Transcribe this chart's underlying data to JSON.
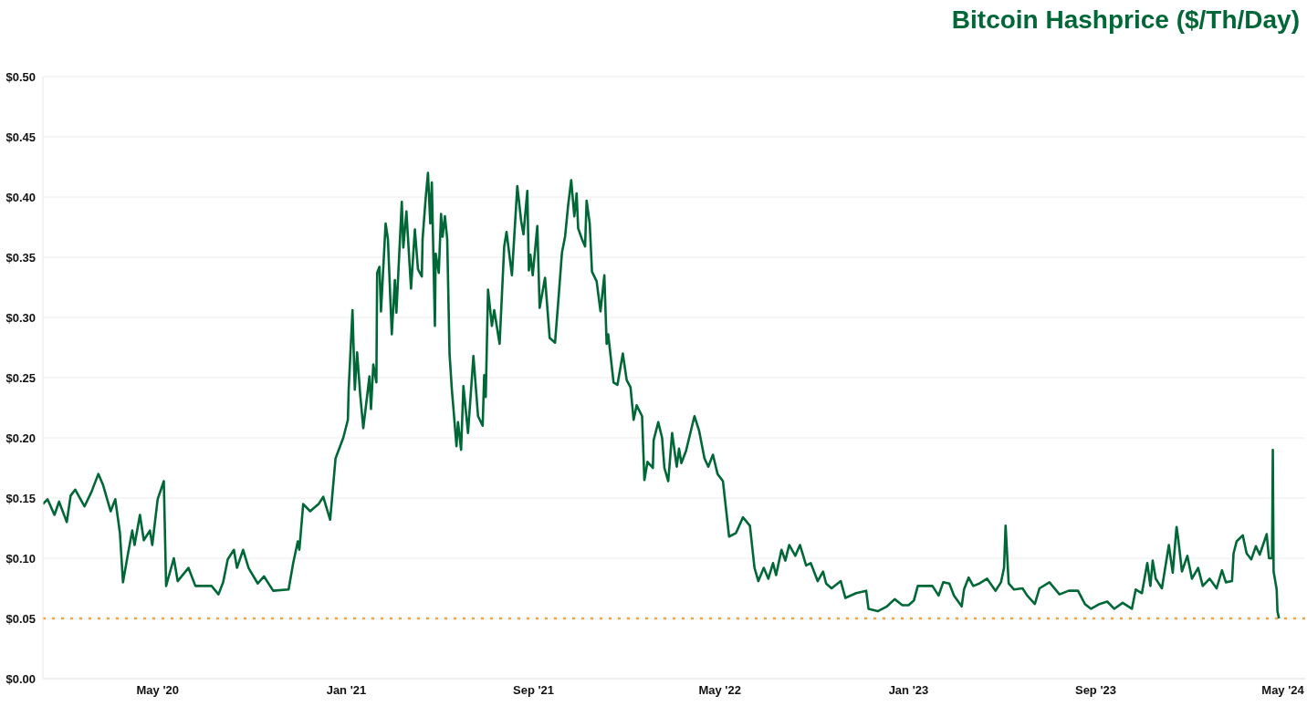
{
  "chart_data": {
    "type": "line",
    "title": "Bitcoin Hashprice ($/Th/Day)",
    "color": "#006837",
    "grid": "y",
    "xlim": [
      "2019-12-04",
      "2024-05-30"
    ],
    "xticks": [
      {
        "value": "2020-05-01",
        "label": "May '20"
      },
      {
        "value": "2021-01-01",
        "label": "Jan '21"
      },
      {
        "value": "2021-09-01",
        "label": "Sep '21"
      },
      {
        "value": "2022-05-01",
        "label": "May '22"
      },
      {
        "value": "2023-01-01",
        "label": "Jan '23"
      },
      {
        "value": "2023-09-01",
        "label": "Sep '23"
      },
      {
        "value": "2024-05-01",
        "label": "May '24"
      }
    ],
    "ylim": [
      0,
      0.5
    ],
    "yticks": [
      {
        "value": 0,
        "label": "$0.00"
      },
      {
        "value": 0.05,
        "label": "$0.05"
      },
      {
        "value": 0.1,
        "label": "$0.10"
      },
      {
        "value": 0.15,
        "label": "$0.15"
      },
      {
        "value": 0.2,
        "label": "$0.20"
      },
      {
        "value": 0.25,
        "label": "$0.25"
      },
      {
        "value": 0.3,
        "label": "$0.30"
      },
      {
        "value": 0.35,
        "label": "$0.35"
      },
      {
        "value": 0.4,
        "label": "$0.40"
      },
      {
        "value": 0.45,
        "label": "$0.45"
      },
      {
        "value": 0.5,
        "label": "$0.50"
      }
    ],
    "ref_lines": [
      {
        "axis": "y",
        "value": 0.05,
        "color": "#f4a342",
        "line_style": "dotted"
      }
    ],
    "x": [
      "2019-12-04",
      "2019-12-10",
      "2019-12-19",
      "2019-12-25",
      "2020-01-04",
      "2020-01-09",
      "2020-01-15",
      "2020-01-27",
      "2020-02-05",
      "2020-02-14",
      "2020-02-20",
      "2020-03-01",
      "2020-03-07",
      "2020-03-13",
      "2020-03-17",
      "2020-03-23",
      "2020-03-29",
      "2020-04-01",
      "2020-04-08",
      "2020-04-13",
      "2020-04-21",
      "2020-04-24",
      "2020-05-01",
      "2020-05-09",
      "2020-05-12",
      "2020-05-22",
      "2020-05-27",
      "2020-06-10",
      "2020-06-19",
      "2020-07-10",
      "2020-07-19",
      "2020-07-25",
      "2020-07-31",
      "2020-08-08",
      "2020-08-12",
      "2020-08-20",
      "2020-08-27",
      "2020-09-08",
      "2020-09-16",
      "2020-09-28",
      "2020-10-18",
      "2020-10-24",
      "2020-10-30",
      "2020-11-01",
      "2020-11-06",
      "2020-11-15",
      "2020-11-26",
      "2020-12-02",
      "2020-12-11",
      "2020-12-18",
      "2020-12-28",
      "2021-01-03",
      "2021-01-04",
      "2021-01-09",
      "2021-01-12",
      "2021-01-15",
      "2021-01-19",
      "2021-01-23",
      "2021-01-31",
      "2021-02-02",
      "2021-02-05",
      "2021-02-09",
      "2021-02-10",
      "2021-02-13",
      "2021-02-15",
      "2021-02-21",
      "2021-02-24",
      "2021-03-01",
      "2021-03-05",
      "2021-03-07",
      "2021-03-14",
      "2021-03-16",
      "2021-03-20",
      "2021-03-26",
      "2021-03-31",
      "2021-04-04",
      "2021-04-09",
      "2021-04-10",
      "2021-04-14",
      "2021-04-17",
      "2021-04-20",
      "2021-04-22",
      "2021-04-26",
      "2021-04-27",
      "2021-05-01",
      "2021-05-04",
      "2021-05-06",
      "2021-05-09",
      "2021-05-12",
      "2021-05-15",
      "2021-05-18",
      "2021-05-20",
      "2021-05-24",
      "2021-05-26",
      "2021-05-30",
      "2021-06-02",
      "2021-06-08",
      "2021-06-15",
      "2021-06-21",
      "2021-06-27",
      "2021-06-29",
      "2021-07-01",
      "2021-07-04",
      "2021-07-09",
      "2021-07-12",
      "2021-07-19",
      "2021-07-25",
      "2021-07-28",
      "2021-08-04",
      "2021-08-11",
      "2021-08-16",
      "2021-08-19",
      "2021-08-24",
      "2021-08-26",
      "2021-08-28",
      "2021-08-31",
      "2021-09-06",
      "2021-09-09",
      "2021-09-16",
      "2021-09-22",
      "2021-09-29",
      "2021-10-04",
      "2021-10-08",
      "2021-10-12",
      "2021-10-16",
      "2021-10-20",
      "2021-10-24",
      "2021-10-27",
      "2021-10-29",
      "2021-11-03",
      "2021-11-07",
      "2021-11-09",
      "2021-11-13",
      "2021-11-16",
      "2021-11-22",
      "2021-11-27",
      "2021-12-02",
      "2021-12-05",
      "2021-12-07",
      "2021-12-14",
      "2021-12-19",
      "2021-12-26",
      "2021-12-31",
      "2022-01-05",
      "2022-01-09",
      "2022-01-13",
      "2022-01-20",
      "2022-01-23",
      "2022-01-27",
      "2022-02-03",
      "2022-02-04",
      "2022-02-10",
      "2022-02-15",
      "2022-02-18",
      "2022-02-23",
      "2022-02-28",
      "2022-03-06",
      "2022-03-09",
      "2022-03-12",
      "2022-03-18",
      "2022-03-29",
      "2022-04-04",
      "2022-04-11",
      "2022-04-16",
      "2022-04-22",
      "2022-04-28",
      "2022-05-05",
      "2022-05-13",
      "2022-05-22",
      "2022-05-31",
      "2022-06-09",
      "2022-06-15",
      "2022-06-20",
      "2022-06-27",
      "2022-07-03",
      "2022-07-09",
      "2022-07-13",
      "2022-07-20",
      "2022-07-25",
      "2022-07-30",
      "2022-08-07",
      "2022-08-13",
      "2022-08-21",
      "2022-08-27",
      "2022-09-05",
      "2022-09-12",
      "2022-09-16",
      "2022-09-23",
      "2022-10-05",
      "2022-10-11",
      "2022-10-25",
      "2022-11-07",
      "2022-11-10",
      "2022-11-22",
      "2022-12-04",
      "2022-12-14",
      "2022-12-24",
      "2023-01-01",
      "2023-01-08",
      "2023-01-13",
      "2023-01-22",
      "2023-02-01",
      "2023-02-09",
      "2023-02-15",
      "2023-02-23",
      "2023-03-01",
      "2023-03-11",
      "2023-03-14",
      "2023-03-20",
      "2023-03-26",
      "2023-04-03",
      "2023-04-13",
      "2023-04-24",
      "2023-05-01",
      "2023-05-05",
      "2023-05-07",
      "2023-05-11",
      "2023-05-18",
      "2023-05-29",
      "2023-06-04",
      "2023-06-14",
      "2023-06-20",
      "2023-07-03",
      "2023-07-16",
      "2023-07-28",
      "2023-08-09",
      "2023-08-18",
      "2023-08-26",
      "2023-09-06",
      "2023-09-16",
      "2023-09-25",
      "2023-10-06",
      "2023-10-18",
      "2023-10-23",
      "2023-10-31",
      "2023-11-07",
      "2023-11-11",
      "2023-11-14",
      "2023-11-18",
      "2023-11-26",
      "2023-12-05",
      "2023-12-10",
      "2023-12-15",
      "2023-12-17",
      "2023-12-22",
      "2023-12-29",
      "2024-01-04",
      "2024-01-12",
      "2024-01-18",
      "2024-01-27",
      "2024-02-05",
      "2024-02-12",
      "2024-02-17",
      "2024-02-25",
      "2024-02-27",
      "2024-03-02",
      "2024-03-10",
      "2024-03-15",
      "2024-03-21",
      "2024-03-27",
      "2024-04-01",
      "2024-04-10",
      "2024-04-13",
      "2024-04-17",
      "2024-04-18",
      "2024-04-19",
      "2024-04-23",
      "2024-04-24",
      "2024-04-26"
    ],
    "values": [
      0.145,
      0.149,
      0.136,
      0.147,
      0.13,
      0.152,
      0.157,
      0.143,
      0.155,
      0.17,
      0.161,
      0.139,
      0.149,
      0.121,
      0.08,
      0.102,
      0.123,
      0.111,
      0.136,
      0.115,
      0.123,
      0.111,
      0.149,
      0.164,
      0.077,
      0.1,
      0.081,
      0.092,
      0.077,
      0.077,
      0.07,
      0.08,
      0.099,
      0.107,
      0.092,
      0.107,
      0.092,
      0.079,
      0.085,
      0.073,
      0.074,
      0.096,
      0.114,
      0.107,
      0.145,
      0.139,
      0.145,
      0.151,
      0.132,
      0.183,
      0.2,
      0.215,
      0.24,
      0.306,
      0.24,
      0.271,
      0.236,
      0.208,
      0.251,
      0.224,
      0.261,
      0.246,
      0.337,
      0.342,
      0.305,
      0.378,
      0.365,
      0.286,
      0.331,
      0.304,
      0.396,
      0.358,
      0.388,
      0.324,
      0.373,
      0.34,
      0.334,
      0.365,
      0.399,
      0.42,
      0.378,
      0.412,
      0.293,
      0.353,
      0.337,
      0.386,
      0.367,
      0.384,
      0.365,
      0.27,
      0.24,
      0.225,
      0.193,
      0.213,
      0.19,
      0.243,
      0.204,
      0.268,
      0.218,
      0.21,
      0.252,
      0.234,
      0.323,
      0.293,
      0.306,
      0.278,
      0.359,
      0.371,
      0.335,
      0.409,
      0.38,
      0.369,
      0.405,
      0.339,
      0.352,
      0.335,
      0.376,
      0.308,
      0.333,
      0.283,
      0.279,
      0.32,
      0.354,
      0.367,
      0.393,
      0.414,
      0.384,
      0.403,
      0.374,
      0.365,
      0.359,
      0.397,
      0.378,
      0.338,
      0.33,
      0.305,
      0.335,
      0.278,
      0.286,
      0.246,
      0.244,
      0.27,
      0.248,
      0.242,
      0.215,
      0.227,
      0.218,
      0.165,
      0.18,
      0.175,
      0.198,
      0.213,
      0.2,
      0.175,
      0.164,
      0.204,
      0.176,
      0.191,
      0.179,
      0.189,
      0.218,
      0.206,
      0.183,
      0.176,
      0.186,
      0.17,
      0.164,
      0.118,
      0.121,
      0.134,
      0.127,
      0.092,
      0.081,
      0.092,
      0.083,
      0.096,
      0.086,
      0.107,
      0.098,
      0.111,
      0.102,
      0.111,
      0.094,
      0.096,
      0.081,
      0.089,
      0.079,
      0.075,
      0.081,
      0.067,
      0.071,
      0.073,
      0.058,
      0.056,
      0.06,
      0.066,
      0.061,
      0.061,
      0.065,
      0.077,
      0.077,
      0.077,
      0.069,
      0.08,
      0.079,
      0.069,
      0.06,
      0.074,
      0.084,
      0.077,
      0.079,
      0.083,
      0.073,
      0.08,
      0.092,
      0.127,
      0.079,
      0.074,
      0.075,
      0.069,
      0.062,
      0.075,
      0.08,
      0.07,
      0.073,
      0.073,
      0.062,
      0.058,
      0.062,
      0.064,
      0.058,
      0.063,
      0.058,
      0.074,
      0.071,
      0.096,
      0.077,
      0.098,
      0.083,
      0.075,
      0.111,
      0.088,
      0.126,
      0.117,
      0.089,
      0.102,
      0.083,
      0.092,
      0.077,
      0.083,
      0.075,
      0.09,
      0.08,
      0.081,
      0.104,
      0.114,
      0.119,
      0.104,
      0.099,
      0.11,
      0.103,
      0.12,
      0.1,
      0.1,
      0.19,
      0.089,
      0.074,
      0.056,
      0.05
    ]
  }
}
